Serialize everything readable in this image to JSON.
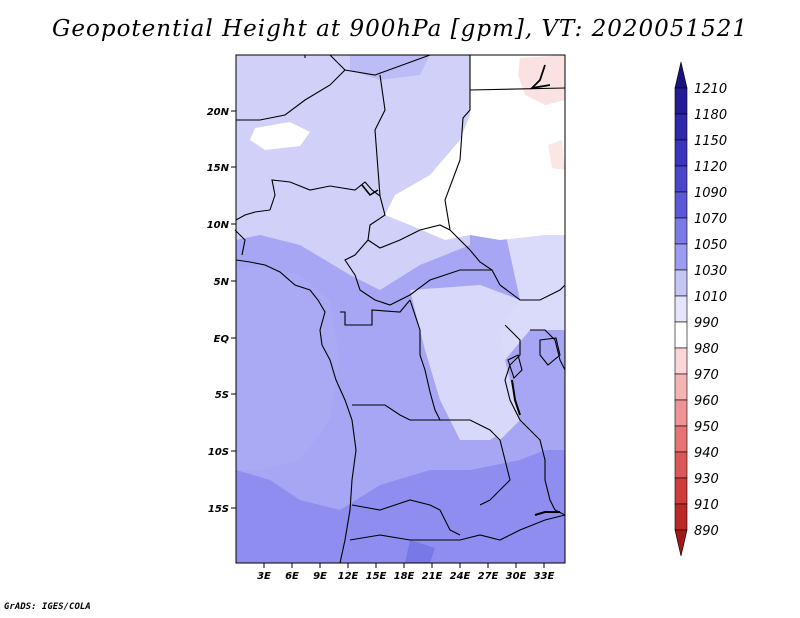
{
  "title": "Geopotential Height at 900hPa [gpm], VT: 2020051521",
  "credit": "GrADS: IGES/COLA",
  "map": {
    "lat_labels": [
      "20N",
      "15N",
      "10N",
      "5N",
      "EQ",
      "5S",
      "10S",
      "15S"
    ],
    "lon_labels": [
      "3E",
      "6E",
      "9E",
      "12E",
      "15E",
      "18E",
      "21E",
      "24E",
      "27E",
      "30E",
      "33E"
    ]
  },
  "colorbar": {
    "levels": [
      "1210",
      "1180",
      "1150",
      "1120",
      "1090",
      "1070",
      "1050",
      "1030",
      "1010",
      "990",
      "980",
      "970",
      "960",
      "950",
      "940",
      "930",
      "910",
      "890"
    ],
    "colors": [
      "#1a1480",
      "#231c96",
      "#2e28aa",
      "#3a35bc",
      "#4a46cc",
      "#5c58d8",
      "#7c7ae6",
      "#9c9cf0",
      "#c6c6f6",
      "#e4e4fa",
      "#ffffff",
      "#fbd6d6",
      "#f5b4b4",
      "#ef9494",
      "#e77474",
      "#dc5858",
      "#d03c3c",
      "#bc2828",
      "#a01818"
    ]
  }
}
